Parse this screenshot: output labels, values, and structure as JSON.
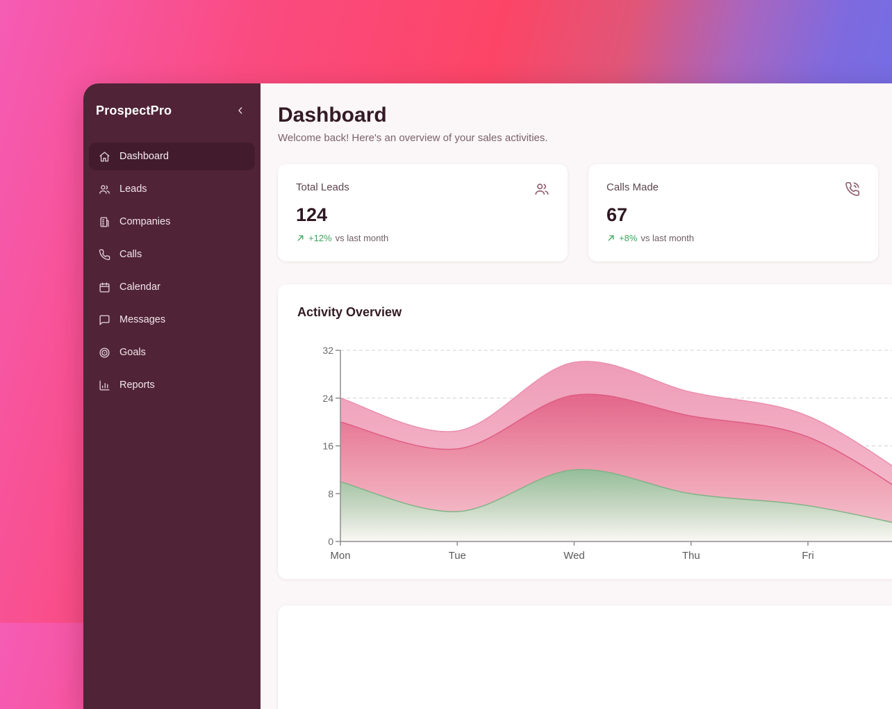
{
  "app": {
    "brand": "ProspectPro",
    "window_bg": "#fbf6f7",
    "sidebar_bg": "#512336",
    "sidebar_active_bg": "#421c2c",
    "title_color": "#331a25",
    "background_gradient": [
      "#f55cb5",
      "#fb4a74",
      "#fc4566",
      "#a766c0",
      "#6d6fe9"
    ]
  },
  "sidebar": {
    "items": [
      {
        "label": "Dashboard",
        "icon": "home-icon",
        "active": true
      },
      {
        "label": "Leads",
        "icon": "users-icon",
        "active": false
      },
      {
        "label": "Companies",
        "icon": "building-icon",
        "active": false
      },
      {
        "label": "Calls",
        "icon": "phone-icon",
        "active": false
      },
      {
        "label": "Calendar",
        "icon": "calendar-icon",
        "active": false
      },
      {
        "label": "Messages",
        "icon": "message-icon",
        "active": false
      },
      {
        "label": "Goals",
        "icon": "target-icon",
        "active": false
      },
      {
        "label": "Reports",
        "icon": "bar-chart-icon",
        "active": false
      }
    ]
  },
  "header": {
    "title": "Dashboard",
    "subtitle": "Welcome back! Here's an overview of your sales activities."
  },
  "stats": [
    {
      "label": "Total Leads",
      "value": "124",
      "change": "+12%",
      "note": "vs last month",
      "icon": "users-icon",
      "change_color": "#3fa45c"
    },
    {
      "label": "Calls Made",
      "value": "67",
      "change": "+8%",
      "note": "vs last month",
      "icon": "phone-call-icon",
      "change_color": "#3fa45c"
    }
  ],
  "chart_data": {
    "type": "area",
    "title": "Activity Overview",
    "categories": [
      "Mon",
      "Tue",
      "Wed",
      "Thu",
      "Fri"
    ],
    "series": [
      {
        "name": "outer-pink-band",
        "stroke": "#eb8fae",
        "fill_stops": [
          "#ee9cb7",
          "#f7c3d3"
        ],
        "fill_offsets": [
          "0%",
          "100%"
        ],
        "values": [
          24,
          18.5,
          30,
          25,
          21
        ]
      },
      {
        "name": "inner-pink-band",
        "stroke": "#df5c84",
        "fill_stops": [
          "#e3668a",
          "#ef9fb2",
          "#f6c8d3"
        ],
        "fill_offsets": [
          "0%",
          "55%",
          "100%"
        ],
        "values": [
          20,
          15.5,
          24.5,
          21,
          17.5
        ]
      },
      {
        "name": "green-band",
        "stroke": "#7fb386",
        "fill_stops": [
          "#94bd99",
          "#cbd9c5",
          "#faf8f5"
        ],
        "fill_offsets": [
          "0%",
          "55%",
          "100%"
        ],
        "values": [
          10,
          5,
          12,
          8,
          6
        ]
      }
    ],
    "offscreen_next_values": [
      9,
      6,
      2
    ],
    "xlabel": "",
    "ylabel": "",
    "ylim": [
      0,
      32
    ],
    "yticks": [
      0,
      8,
      16,
      24,
      32
    ],
    "grid": "dashed-horizontal",
    "legend": "none",
    "axis_color": "#8d8d8d",
    "grid_color": "#d3cfd0",
    "ytick_color": "#6b6b6b",
    "xtick_color": "#5a5a5a"
  }
}
